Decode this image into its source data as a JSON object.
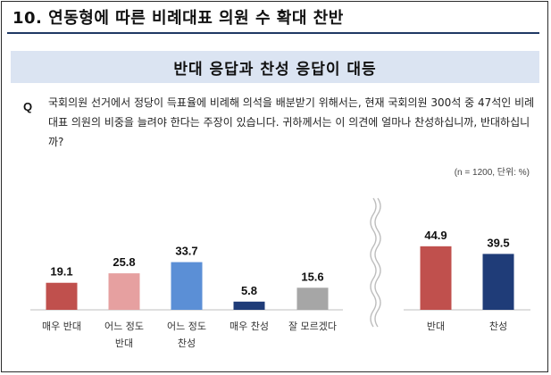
{
  "title": "10. 연동형에 따른 비례대표 의원 수 확대 찬반",
  "subtitle": "반대 응답과 찬성 응답이 대등",
  "question": {
    "label": "Q",
    "text": "국회의원 선거에서 정당이 득표율에 비례해 의석을 배분받기 위해서는, 현재 국회의원 300석 중 47석인 비례대표 의원의 비중을 늘려야 한다는 주장이 있습니다. 귀하께서는 이 의견에 얼마나 찬성하십니까, 반대하십니까?"
  },
  "note": "(n = 1200, 단위: %)",
  "chart_data": [
    {
      "type": "bar",
      "categories": [
        "매우 반대",
        "어느 정도\n반대",
        "어느 정도\n찬성",
        "매우 찬성",
        "잘 모르겠다"
      ],
      "values": [
        19.1,
        25.8,
        33.7,
        5.8,
        15.6
      ],
      "colors": [
        "#c0504d",
        "#e6a0a0",
        "#5b8fd6",
        "#1f3c78",
        "#a6a6a6"
      ],
      "ylim": [
        0,
        50
      ]
    },
    {
      "type": "bar",
      "categories": [
        "반대",
        "찬성"
      ],
      "values": [
        44.9,
        39.5
      ],
      "colors": [
        "#c0504d",
        "#1f3c78"
      ],
      "ylim": [
        0,
        50
      ]
    }
  ]
}
